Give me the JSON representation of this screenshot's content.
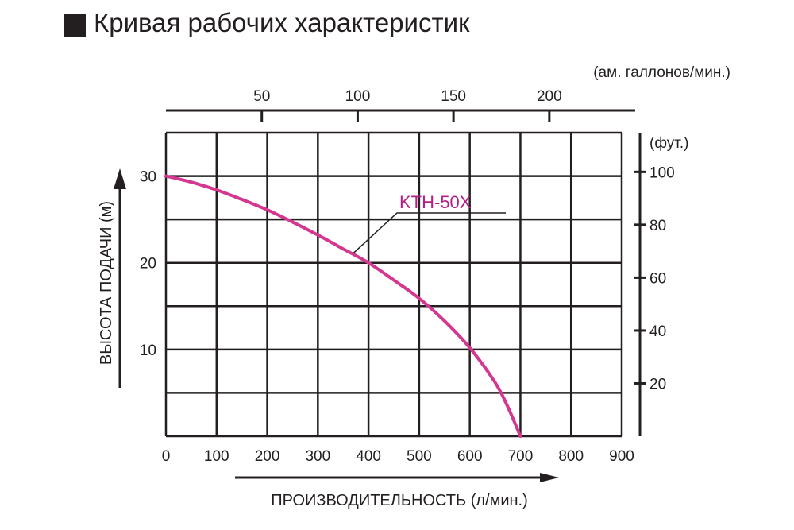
{
  "title": "Кривая рабочих характеристик",
  "colors": {
    "grid": "#231f20",
    "curve": "#d4378f",
    "label": "#b51f85"
  },
  "chart_data": {
    "type": "line",
    "xlabel": "ПРОИЗВОДИТЕЛЬНОСТЬ (л/мин.)",
    "ylabel": "ВЫСОТА ПОДАЧИ (м)",
    "xlim": [
      0,
      900
    ],
    "ylim": [
      0,
      35
    ],
    "x_ticks": [
      "0",
      "100",
      "200",
      "300",
      "400",
      "500",
      "600",
      "700",
      "800",
      "900"
    ],
    "y_ticks": [
      "10",
      "20",
      "30"
    ],
    "top_axis": {
      "label": "(ам. галлонов/мин.)",
      "ticks": [
        "50",
        "100",
        "150",
        "200"
      ],
      "values": [
        50,
        100,
        150,
        200
      ]
    },
    "right_axis": {
      "label": "(фут.)",
      "ticks": [
        "20",
        "40",
        "60",
        "80",
        "100"
      ],
      "values": [
        20,
        40,
        60,
        80,
        100
      ]
    },
    "grid": true,
    "series": [
      {
        "name": "KTH-50X",
        "x": [
          0,
          50,
          100,
          150,
          200,
          250,
          300,
          350,
          400,
          450,
          500,
          550,
          600,
          650,
          675,
          700
        ],
        "y": [
          30,
          29.3,
          28.4,
          27.3,
          26.1,
          24.7,
          23.2,
          21.6,
          20,
          18.0,
          15.9,
          13.3,
          10.2,
          6.2,
          3.4,
          0
        ]
      }
    ]
  }
}
